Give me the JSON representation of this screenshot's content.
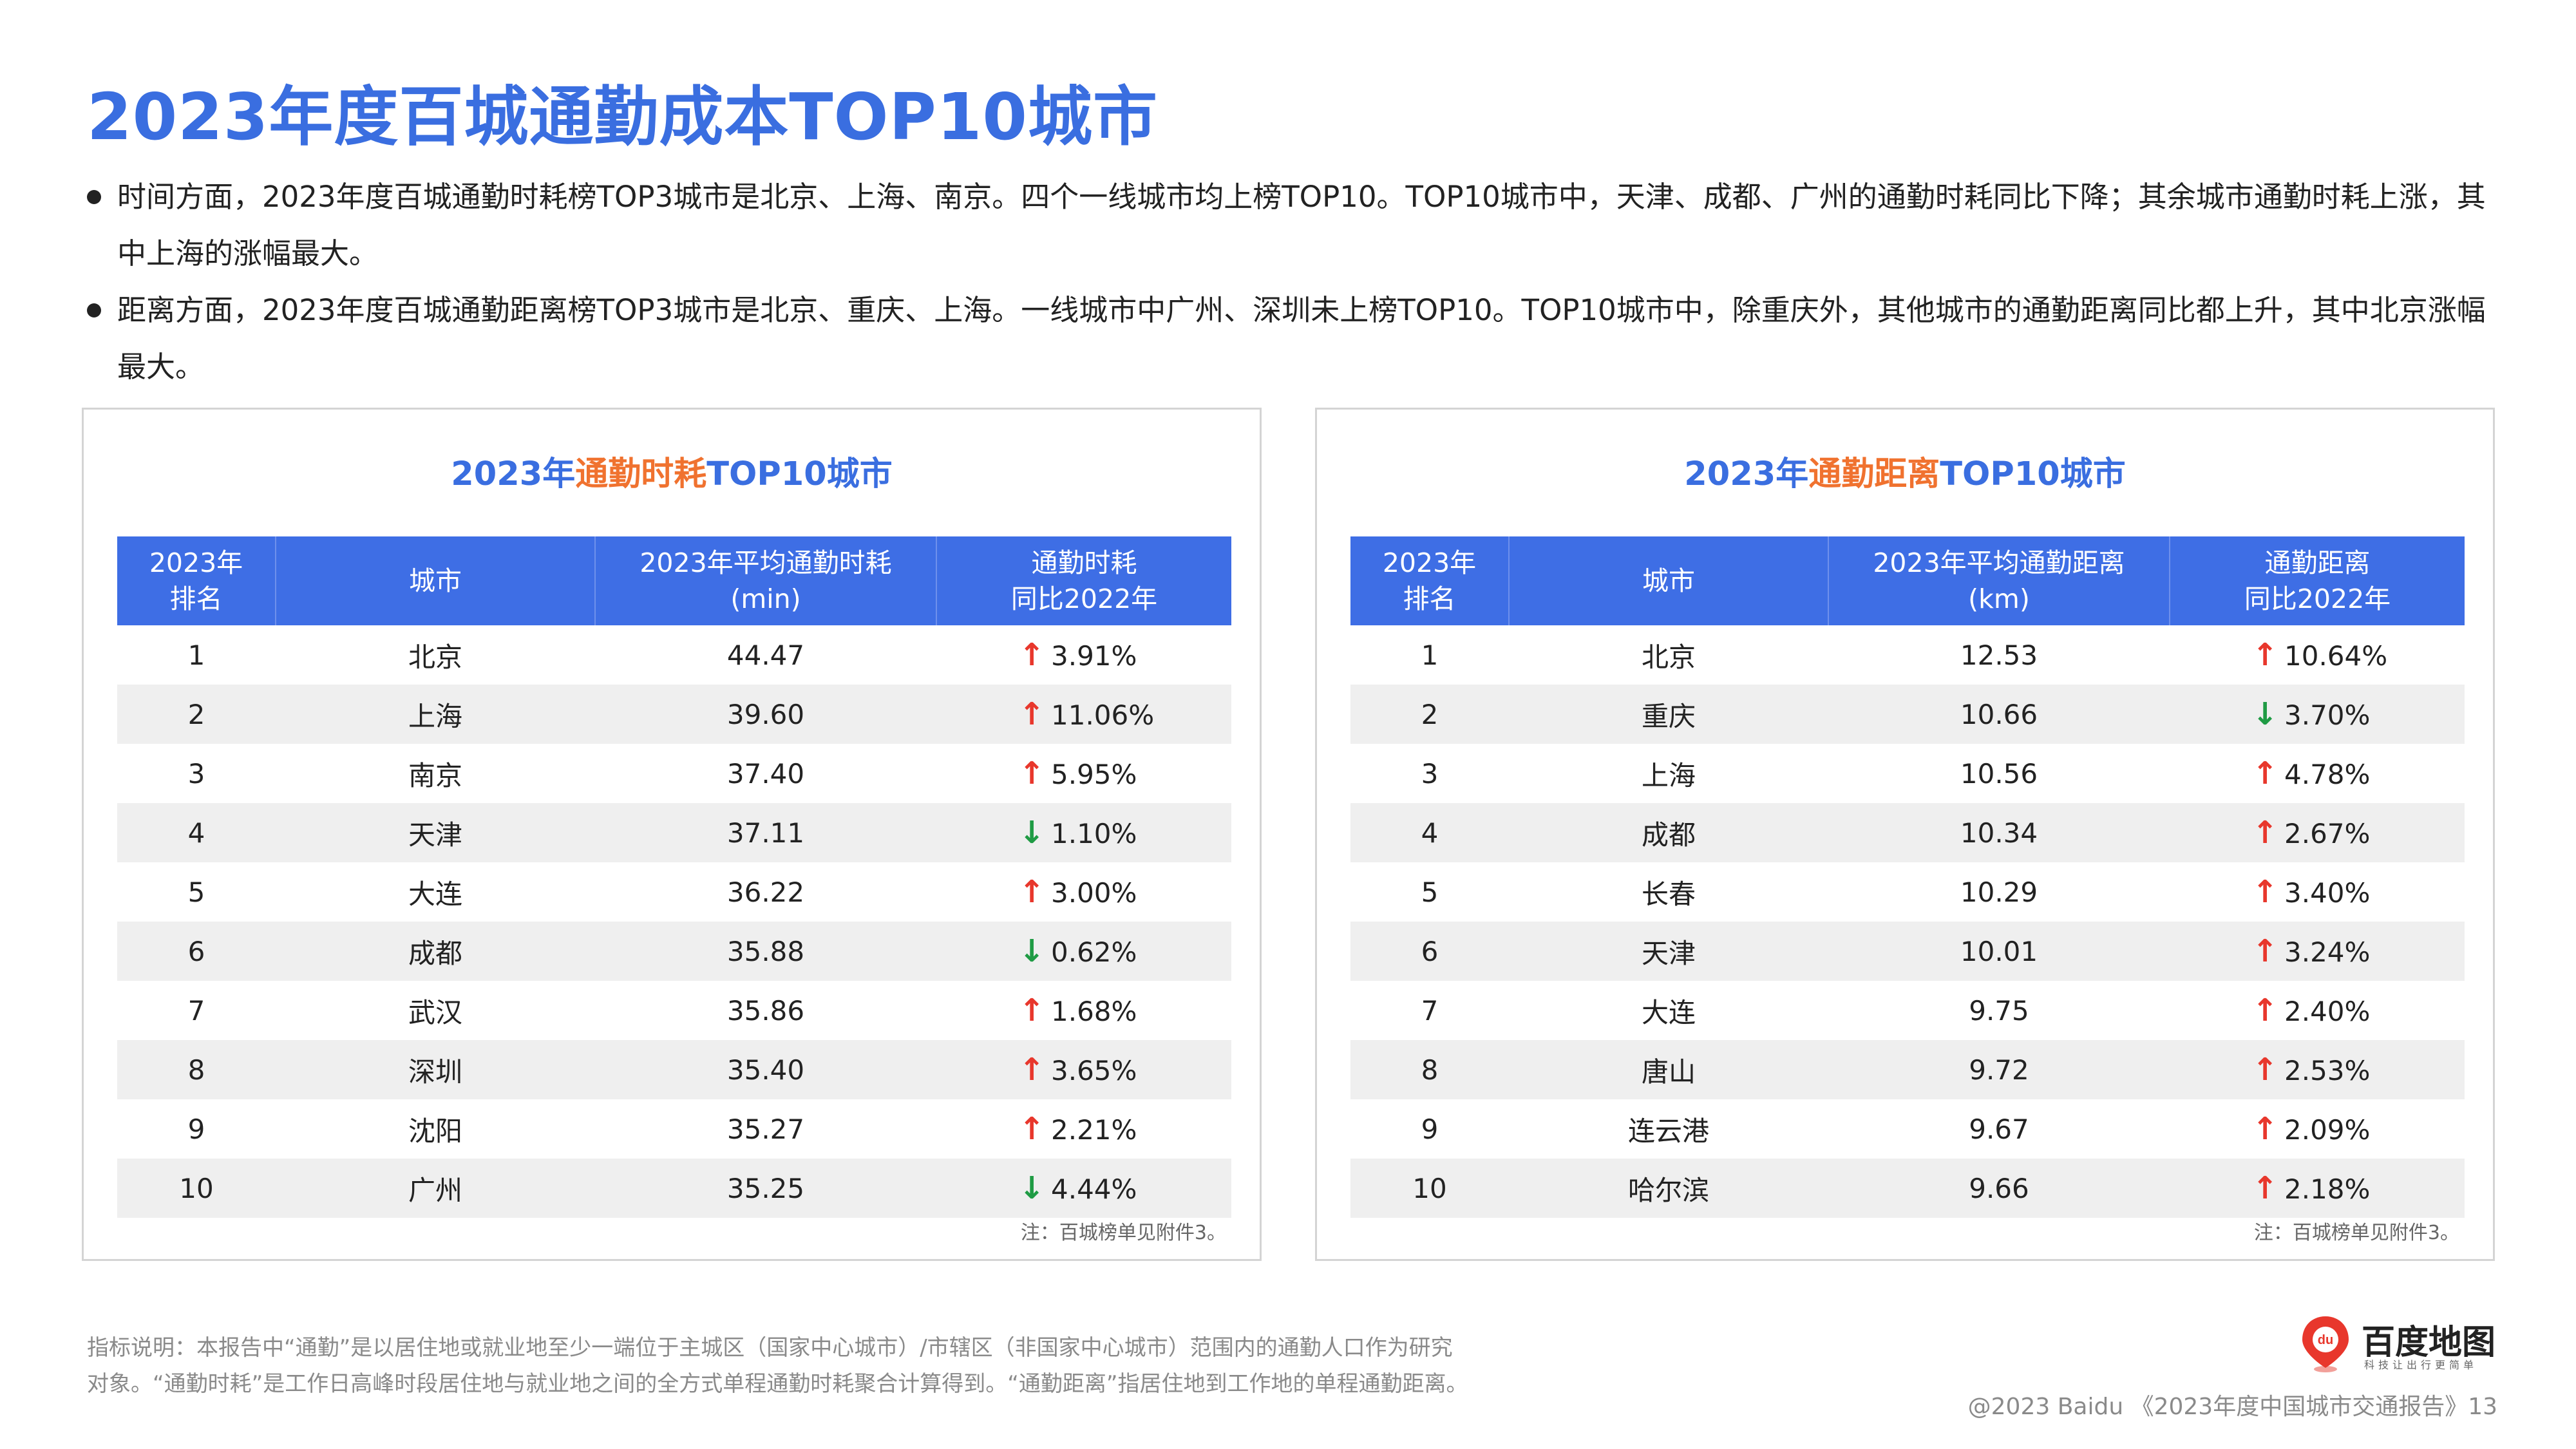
{
  "title": "2023年度百城通勤成本TOP10城市",
  "bullets": [
    "时间方面，2023年度百城通勤时耗榜TOP3城市是北京、上海、南京。四个一线城市均上榜TOP10。TOP10城市中，天津、成都、广州的通勤时耗同比下降；其余城市通勤时耗上涨，其中上海的涨幅最大。",
    "距离方面，2023年度百城通勤距离榜TOP3城市是北京、重庆、上海。一线城市中广州、深圳未上榜TOP10。TOP10城市中，除重庆外，其他城市的通勤距离同比都上升，其中北京涨幅最大。"
  ],
  "time_panel": {
    "title_prefix": "2023年",
    "title_highlight": "通勤时耗",
    "title_suffix": "TOP10城市",
    "headers": [
      "2023年",
      "排名",
      "城市",
      "2023年平均通勤时耗",
      "(min)",
      "通勤时耗",
      "同比2022年"
    ],
    "rows": [
      {
        "rank": "1",
        "city": "北京",
        "value": "44.47",
        "dir": "↑",
        "change": "3.91%"
      },
      {
        "rank": "2",
        "city": "上海",
        "value": "39.60",
        "dir": "↑",
        "change": "11.06%"
      },
      {
        "rank": "3",
        "city": "南京",
        "value": "37.40",
        "dir": "↑",
        "change": "5.95%"
      },
      {
        "rank": "4",
        "city": "天津",
        "value": "37.11",
        "dir": "↓",
        "change": "1.10%"
      },
      {
        "rank": "5",
        "city": "大连",
        "value": "36.22",
        "dir": "↑",
        "change": "3.00%"
      },
      {
        "rank": "6",
        "city": "成都",
        "value": "35.88",
        "dir": "↓",
        "change": "0.62%"
      },
      {
        "rank": "7",
        "city": "武汉",
        "value": "35.86",
        "dir": "↑",
        "change": "1.68%"
      },
      {
        "rank": "8",
        "city": "深圳",
        "value": "35.40",
        "dir": "↑",
        "change": "3.65%"
      },
      {
        "rank": "9",
        "city": "沈阳",
        "value": "35.27",
        "dir": "↑",
        "change": "2.21%"
      },
      {
        "rank": "10",
        "city": "广州",
        "value": "35.25",
        "dir": "↓",
        "change": "4.44%"
      }
    ],
    "note": "注：百城榜单见附件3。"
  },
  "distance_panel": {
    "title_prefix": "2023年",
    "title_highlight": "通勤距离",
    "title_suffix": "TOP10城市",
    "headers": [
      "2023年",
      "排名",
      "城市",
      "2023年平均通勤距离",
      "(km)",
      "通勤距离",
      "同比2022年"
    ],
    "rows": [
      {
        "rank": "1",
        "city": "北京",
        "value": "12.53",
        "dir": "↑",
        "change": "10.64%"
      },
      {
        "rank": "2",
        "city": "重庆",
        "value": "10.66",
        "dir": "↓",
        "change": "3.70%"
      },
      {
        "rank": "3",
        "city": "上海",
        "value": "10.56",
        "dir": "↑",
        "change": "4.78%"
      },
      {
        "rank": "4",
        "city": "成都",
        "value": "10.34",
        "dir": "↑",
        "change": "2.67%"
      },
      {
        "rank": "5",
        "city": "长春",
        "value": "10.29",
        "dir": "↑",
        "change": "3.40%"
      },
      {
        "rank": "6",
        "city": "天津",
        "value": "10.01",
        "dir": "↑",
        "change": "3.24%"
      },
      {
        "rank": "7",
        "city": "大连",
        "value": "9.75",
        "dir": "↑",
        "change": "2.40%"
      },
      {
        "rank": "8",
        "city": "唐山",
        "value": "9.72",
        "dir": "↑",
        "change": "2.53%"
      },
      {
        "rank": "9",
        "city": "连云港",
        "value": "9.67",
        "dir": "↑",
        "change": "2.09%"
      },
      {
        "rank": "10",
        "city": "哈尔滨",
        "value": "9.66",
        "dir": "↑",
        "change": "2.18%"
      }
    ],
    "note": "注：百城榜单见附件3。"
  },
  "footnote": [
    "指标说明：本报告中“通勤”是以居住地或就业地至少一端位于主城区（国家中心城市）/市辖区（非国家中心城市）范围内的通勤人口作为研究",
    "对象。“通勤时耗”是工作日高峰时段居住地与就业地之间的全方式单程通勤时耗聚合计算得到。“通勤距离”指居住地到工作地的单程通勤距离。"
  ],
  "logo": {
    "pin_text": "du",
    "brand": "百度地图",
    "slogan": "科技让出行更简单"
  },
  "copyright": "@2023 Baidu 《2023年度中国城市交通报告》13",
  "colors": {
    "accent_blue": "#3a6ee0",
    "highlight_orange": "#f0722f",
    "header_bg": "#3e6ee5",
    "up_red": "#e8372c",
    "down_green": "#1f9b44"
  }
}
